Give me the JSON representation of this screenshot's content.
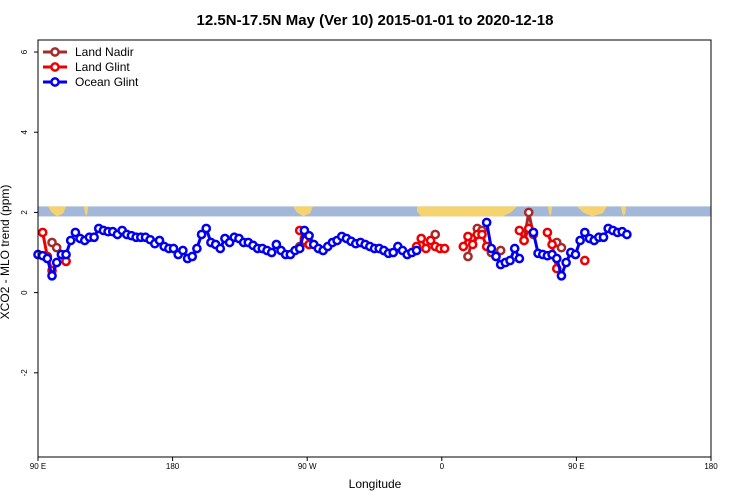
{
  "chart_data": {
    "type": "line",
    "title": "12.5N-17.5N May (Ver 10)   2015-01-01 to 2020-12-18",
    "xlabel": "Longitude",
    "ylabel": "XCO2 - MLO trend (ppm)",
    "xlim": [
      90,
      450
    ],
    "ylim": [
      -4.1,
      6.3
    ],
    "x_ticks": [
      {
        "value": 90,
        "label": "90 E"
      },
      {
        "value": 162,
        "label": "180"
      },
      {
        "value": 234,
        "label": "90 W"
      },
      {
        "value": 306,
        "label": "0"
      },
      {
        "value": 378,
        "label": "90 E"
      },
      {
        "value": 450,
        "label": "180"
      }
    ],
    "y_ticks": [
      {
        "value": -2,
        "label": "-2"
      },
      {
        "value": 0,
        "label": "0"
      },
      {
        "value": 2,
        "label": "2"
      },
      {
        "value": 4,
        "label": "4"
      },
      {
        "value": 6,
        "label": "6"
      }
    ],
    "grid": false,
    "legend_position": "top-left",
    "map_strip": {
      "ymin": 1.9,
      "ymax": 2.15,
      "ocean_color": "#a3b7d8",
      "land_color": "#f5d46f"
    },
    "series": [
      {
        "name": "Land Nadir",
        "color": "#a52a2a",
        "segments": [
          [
            [
              97.5,
              1.25
            ],
            [
              100,
              1.12
            ]
          ],
          [
            [
              105,
              0.78
            ]
          ],
          [
            [
              230,
              1.15
            ],
            [
              232.5,
              1.35
            ],
            [
              235,
              1.2
            ]
          ],
          [
            [
              302.5,
              1.45
            ]
          ],
          [
            [
              320,
              0.9
            ],
            [
              322.5,
              1.35
            ],
            [
              325,
              1.6
            ],
            [
              327.5,
              1.55
            ]
          ],
          [
            [
              332.5,
              1.0
            ]
          ],
          [
            [
              337.5,
              1.05
            ]
          ],
          [
            [
              350,
              1.3
            ],
            [
              352.5,
              2.0
            ],
            [
              355,
              1.45
            ]
          ],
          [
            [
              367.5,
              1.25
            ],
            [
              370,
              1.12
            ]
          ]
        ]
      },
      {
        "name": "Land Glint",
        "color": "#ee0000",
        "segments": [
          [
            [
              92.5,
              1.5
            ],
            [
              95,
              0.9
            ],
            [
              97.5,
              0.55
            ]
          ],
          [
            [
              105,
              0.78
            ]
          ],
          [
            [
              230,
              1.55
            ],
            [
              232.5,
              1.3
            ],
            [
              235,
              1.2
            ]
          ],
          [
            [
              292.5,
              1.15
            ],
            [
              295,
              1.35
            ],
            [
              297.5,
              1.1
            ],
            [
              300,
              1.3
            ],
            [
              302.5,
              1.15
            ],
            [
              305,
              1.1
            ],
            [
              307.5,
              1.1
            ]
          ],
          [
            [
              317.5,
              1.15
            ],
            [
              320,
              1.4
            ],
            [
              322.5,
              1.2
            ],
            [
              325,
              1.45
            ],
            [
              327.5,
              1.45
            ],
            [
              330,
              1.15
            ]
          ],
          [
            [
              347.5,
              1.55
            ],
            [
              350,
              1.3
            ],
            [
              352.5,
              1.6
            ],
            [
              355,
              1.5
            ]
          ],
          [
            [
              362.5,
              1.5
            ],
            [
              365,
              1.2
            ],
            [
              367.5,
              0.6
            ]
          ],
          [
            [
              382.5,
              0.8
            ]
          ]
        ]
      },
      {
        "name": "Ocean Glint",
        "color": "#0000ee",
        "segments": [
          [
            [
              90,
              0.95
            ],
            [
              92.5,
              0.92
            ],
            [
              95,
              0.85
            ],
            [
              97.5,
              0.42
            ],
            [
              100,
              0.75
            ],
            [
              102.5,
              0.95
            ],
            [
              105,
              0.95
            ],
            [
              107.5,
              1.3
            ],
            [
              110,
              1.5
            ],
            [
              112.5,
              1.35
            ],
            [
              115,
              1.3
            ],
            [
              117.5,
              1.38
            ],
            [
              120,
              1.38
            ],
            [
              122.5,
              1.6
            ],
            [
              125,
              1.55
            ],
            [
              127.5,
              1.52
            ],
            [
              130,
              1.52
            ],
            [
              132.5,
              1.45
            ],
            [
              135,
              1.55
            ],
            [
              137.5,
              1.45
            ],
            [
              140,
              1.42
            ],
            [
              142.5,
              1.38
            ],
            [
              145,
              1.38
            ],
            [
              147.5,
              1.38
            ],
            [
              150,
              1.32
            ],
            [
              152.5,
              1.22
            ],
            [
              155,
              1.3
            ],
            [
              157.5,
              1.15
            ],
            [
              160,
              1.1
            ],
            [
              162.5,
              1.1
            ],
            [
              165,
              0.95
            ],
            [
              167.5,
              1.05
            ],
            [
              170,
              0.85
            ],
            [
              172.5,
              0.9
            ],
            [
              175,
              1.1
            ],
            [
              177.5,
              1.45
            ],
            [
              180,
              1.6
            ],
            [
              182.5,
              1.25
            ],
            [
              185,
              1.2
            ],
            [
              187.5,
              1.1
            ],
            [
              190,
              1.35
            ],
            [
              192.5,
              1.25
            ],
            [
              195,
              1.38
            ],
            [
              197.5,
              1.35
            ],
            [
              200,
              1.25
            ],
            [
              202.5,
              1.25
            ],
            [
              205,
              1.18
            ],
            [
              207.5,
              1.1
            ],
            [
              210,
              1.1
            ],
            [
              212.5,
              1.05
            ],
            [
              215,
              1.0
            ],
            [
              217.5,
              1.2
            ],
            [
              220,
              1.05
            ],
            [
              222.5,
              0.95
            ],
            [
              225,
              0.95
            ],
            [
              227.5,
              1.05
            ],
            [
              230,
              1.1
            ],
            [
              232.5,
              1.55
            ],
            [
              235,
              1.42
            ],
            [
              237.5,
              1.2
            ],
            [
              240,
              1.1
            ],
            [
              242.5,
              1.05
            ],
            [
              245,
              1.15
            ],
            [
              247.5,
              1.25
            ],
            [
              250,
              1.3
            ],
            [
              252.5,
              1.4
            ],
            [
              255,
              1.35
            ],
            [
              257.5,
              1.28
            ],
            [
              260,
              1.22
            ],
            [
              262.5,
              1.25
            ],
            [
              265,
              1.2
            ],
            [
              267.5,
              1.15
            ],
            [
              270,
              1.1
            ],
            [
              272.5,
              1.1
            ],
            [
              275,
              1.05
            ],
            [
              277.5,
              0.98
            ],
            [
              280,
              1.0
            ],
            [
              282.5,
              1.15
            ],
            [
              285,
              1.05
            ],
            [
              287.5,
              0.95
            ],
            [
              290,
              1.0
            ],
            [
              292.5,
              1.05
            ]
          ],
          [
            [
              330,
              1.75
            ],
            [
              332.5,
              1.1
            ],
            [
              335,
              0.9
            ],
            [
              337.5,
              0.7
            ],
            [
              340,
              0.75
            ],
            [
              342.5,
              0.8
            ],
            [
              345,
              1.1
            ],
            [
              347.5,
              0.85
            ]
          ],
          [
            [
              355,
              1.5
            ],
            [
              357.5,
              0.98
            ],
            [
              360,
              0.95
            ],
            [
              362.5,
              0.92
            ],
            [
              365,
              0.95
            ],
            [
              367.5,
              0.85
            ],
            [
              370,
              0.42
            ],
            [
              372.5,
              0.75
            ],
            [
              375,
              1.0
            ],
            [
              377.5,
              0.95
            ],
            [
              380,
              1.3
            ],
            [
              382.5,
              1.5
            ],
            [
              385,
              1.35
            ],
            [
              387.5,
              1.3
            ],
            [
              390,
              1.38
            ],
            [
              392.5,
              1.38
            ],
            [
              395,
              1.6
            ],
            [
              397.5,
              1.55
            ],
            [
              400,
              1.5
            ],
            [
              402.5,
              1.52
            ],
            [
              405,
              1.45
            ]
          ]
        ]
      }
    ]
  }
}
